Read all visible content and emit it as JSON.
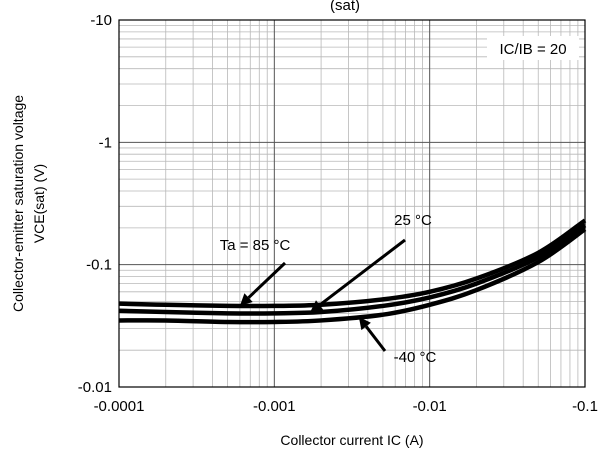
{
  "chart_data": {
    "type": "line",
    "title_fragment": "(sat)",
    "xlabel": "Collector current IC (A)",
    "ylabel_line1": "Collector-emitter saturation voltage",
    "ylabel_line2": "VCE(sat) (V)",
    "x_scale": "log",
    "y_scale": "log",
    "xlim": [
      -0.0001,
      -0.1
    ],
    "ylim": [
      -0.01,
      -10
    ],
    "x_ticks": [
      -0.0001,
      -0.001,
      -0.01,
      -0.1
    ],
    "x_tick_labels": [
      "-0.0001",
      "-0.001",
      "-0.01",
      "-0.1"
    ],
    "y_ticks": [
      -0.01,
      -0.1,
      -1,
      -10
    ],
    "y_tick_labels": [
      "-0.01",
      "-0.1",
      "-1",
      "-10"
    ],
    "grid": true,
    "condition_label": "IC/IB = 20",
    "series": [
      {
        "name": "Ta = 85 °C",
        "x": [
          -0.0001,
          -0.0002,
          -0.0005,
          -0.001,
          -0.002,
          -0.005,
          -0.01,
          -0.02,
          -0.05,
          -0.1
        ],
        "y": [
          -0.048,
          -0.047,
          -0.046,
          -0.046,
          -0.047,
          -0.052,
          -0.06,
          -0.077,
          -0.125,
          -0.23
        ]
      },
      {
        "name": "25 °C",
        "x": [
          -0.0001,
          -0.0002,
          -0.0005,
          -0.001,
          -0.002,
          -0.005,
          -0.01,
          -0.02,
          -0.05,
          -0.1
        ],
        "y": [
          -0.042,
          -0.041,
          -0.04,
          -0.04,
          -0.041,
          -0.046,
          -0.054,
          -0.07,
          -0.115,
          -0.21
        ]
      },
      {
        "name": "-40 °C",
        "x": [
          -0.0001,
          -0.0002,
          -0.0005,
          -0.001,
          -0.002,
          -0.005,
          -0.01,
          -0.02,
          -0.05,
          -0.1
        ],
        "y": [
          -0.035,
          -0.035,
          -0.034,
          -0.034,
          -0.035,
          -0.039,
          -0.047,
          -0.062,
          -0.105,
          -0.195
        ]
      }
    ],
    "annotations": [
      {
        "text": "Ta = 85 °C",
        "series_index": 0,
        "point_x": -0.0006
      },
      {
        "text": "25 °C",
        "series_index": 1,
        "point_x": -0.0017
      },
      {
        "text": "-40 °C",
        "series_index": 2,
        "point_x": -0.0035
      }
    ]
  }
}
